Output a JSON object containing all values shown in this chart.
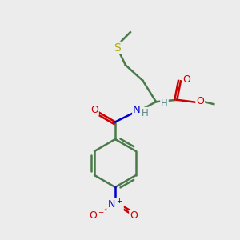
{
  "background_color": "#ececec",
  "atom_colors": {
    "C": "#4a7a4a",
    "H": "#5a8a8a",
    "N": "#0000cc",
    "O": "#cc0000",
    "S": "#aaaa00"
  },
  "bond_color": "#4a7a4a",
  "bond_width": 1.8,
  "figsize": [
    3.0,
    3.0
  ],
  "dpi": 100,
  "xlim": [
    0,
    10
  ],
  "ylim": [
    0,
    10
  ]
}
